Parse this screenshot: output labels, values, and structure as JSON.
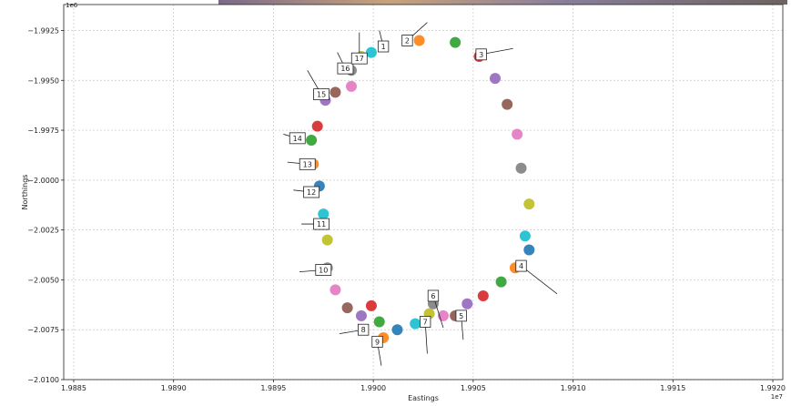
{
  "chart_data": {
    "type": "scatter",
    "x_label": "Eastings",
    "y_label": "Northings",
    "x_offset_label": "1e7",
    "y_offset_label": "1e6",
    "xlim": [
      1.98845,
      1.99205
    ],
    "ylim": [
      -2.01,
      -1.9912
    ],
    "xticks": [
      1.9885,
      {
        "value": 1.989,
        "label": "1.9890"
      },
      1.9895,
      {
        "value": 1.99,
        "label": "1.9900"
      },
      1.9905,
      {
        "value": 1.991,
        "label": "1.9910"
      },
      1.9915,
      {
        "value": 1.992,
        "label": "1.9920"
      }
    ],
    "yticks": [
      {
        "value": -1.9925,
        "label": "−1.9925"
      },
      {
        "value": -1.995,
        "label": "−1.9950"
      },
      {
        "value": -1.9975,
        "label": "−1.9975"
      },
      {
        "value": -2.0,
        "label": "−2.0000"
      },
      {
        "value": -2.0025,
        "label": "−2.0025"
      },
      {
        "value": -2.005,
        "label": "−2.0050"
      },
      {
        "value": -2.0075,
        "label": "−2.0075"
      },
      {
        "value": -2.01,
        "label": "−2.0100"
      }
    ],
    "grid": true,
    "palette": [
      "#1f77b4",
      "#ff7f0e",
      "#2ca02c",
      "#d62728",
      "#9467bd",
      "#8c564b",
      "#e377c2",
      "#7f7f7f",
      "#bcbd22",
      "#17becf"
    ],
    "series": [
      {
        "x": [
          1.99005,
          1.99023,
          1.99041,
          1.99053,
          1.99061,
          1.99067,
          1.99072,
          1.99074,
          1.99078,
          1.99076,
          1.99078,
          1.99071,
          1.99064,
          1.99055,
          1.99047,
          1.99041,
          1.99035,
          1.9903,
          1.99028,
          1.99021,
          1.99012,
          1.99005,
          1.99003,
          1.98999,
          1.98994,
          1.98987,
          1.98981,
          1.98977,
          1.98977,
          1.98975,
          1.98973,
          1.9897,
          1.98969,
          1.98972,
          1.98976,
          1.98981,
          1.98989,
          1.98989,
          1.98994,
          1.98999
        ],
        "values": [
          -1.9933,
          -1.993,
          -1.9931,
          -1.9938,
          -1.9949,
          -1.9962,
          -1.9977,
          -1.9994,
          -2.0012,
          -2.0028,
          -2.0035,
          -2.0044,
          -2.0051,
          -2.0058,
          -2.0062,
          -2.0068,
          -2.0068,
          -2.0062,
          -2.0067,
          -2.0072,
          -2.0075,
          -2.0079,
          -2.0071,
          -2.0063,
          -2.0068,
          -2.0064,
          -2.0055,
          -2.0044,
          -2.003,
          -2.0017,
          -2.0003,
          -1.9992,
          -1.998,
          -1.9973,
          -1.996,
          -1.9956,
          -1.9953,
          -1.9945,
          -1.9938,
          -1.9936
        ]
      }
    ],
    "annotations": [
      {
        "text": "1",
        "xytext": [
          1.99005,
          -1.9933
        ],
        "xy": [
          1.99003,
          -1.9925
        ]
      },
      {
        "text": "2",
        "xytext": [
          1.99017,
          -1.993
        ],
        "xy": [
          1.99027,
          -1.9921
        ]
      },
      {
        "text": "3",
        "xytext": [
          1.99054,
          -1.9937
        ],
        "xy": [
          1.9907,
          -1.9934
        ]
      },
      {
        "text": "4",
        "xytext": [
          1.99074,
          -2.0043
        ],
        "xy": [
          1.99092,
          -2.0057
        ]
      },
      {
        "text": "5",
        "xytext": [
          1.99044,
          -2.0068
        ],
        "xy": [
          1.99045,
          -2.008
        ]
      },
      {
        "text": "6",
        "xytext": [
          1.9903,
          -2.0058
        ],
        "xy": [
          1.99035,
          -2.0074
        ]
      },
      {
        "text": "7",
        "xytext": [
          1.99026,
          -2.0071
        ],
        "xy": [
          1.99027,
          -2.0087
        ]
      },
      {
        "text": "8",
        "xytext": [
          1.98995,
          -2.0075
        ],
        "xy": [
          1.98983,
          -2.0077
        ]
      },
      {
        "text": "9",
        "xytext": [
          1.99002,
          -2.0081
        ],
        "xy": [
          1.99004,
          -2.0093
        ]
      },
      {
        "text": "10",
        "xytext": [
          1.98975,
          -2.0045
        ],
        "xy": [
          1.98963,
          -2.0046
        ]
      },
      {
        "text": "11",
        "xytext": [
          1.98974,
          -2.0022
        ],
        "xy": [
          1.98964,
          -2.0022
        ]
      },
      {
        "text": "12",
        "xytext": [
          1.98969,
          -2.0006
        ],
        "xy": [
          1.9896,
          -2.0005
        ]
      },
      {
        "text": "13",
        "xytext": [
          1.98967,
          -1.9992
        ],
        "xy": [
          1.98957,
          -1.9991
        ]
      },
      {
        "text": "14",
        "xytext": [
          1.98962,
          -1.9979
        ],
        "xy": [
          1.98955,
          -1.9977
        ]
      },
      {
        "text": "15",
        "xytext": [
          1.98974,
          -1.9957
        ],
        "xy": [
          1.98967,
          -1.9945
        ]
      },
      {
        "text": "16",
        "xytext": [
          1.98986,
          -1.9944
        ],
        "xy": [
          1.98982,
          -1.9936
        ]
      },
      {
        "text": "17",
        "xytext": [
          1.98993,
          -1.9939
        ],
        "xy": [
          1.98993,
          -1.9926
        ]
      }
    ]
  }
}
